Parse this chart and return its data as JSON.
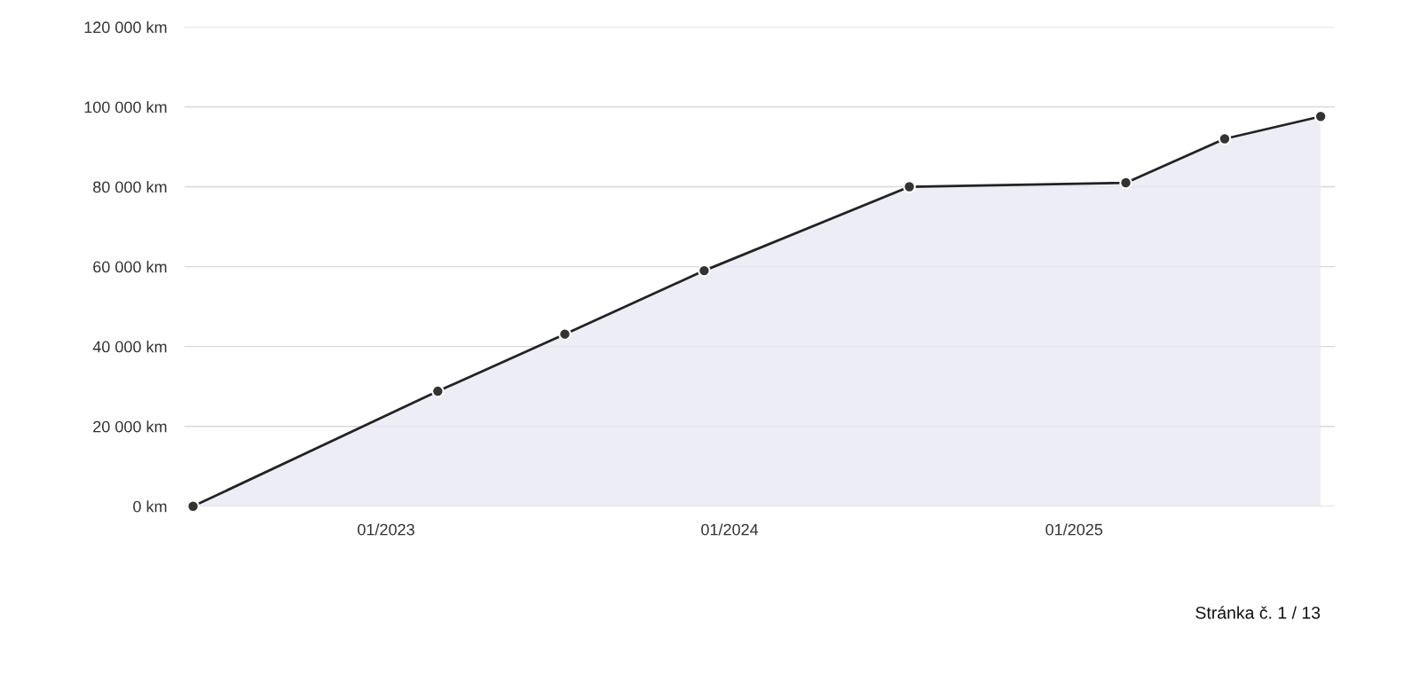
{
  "chart_data": {
    "type": "area",
    "x": [
      "2022-06-10",
      "2023-02-25",
      "2023-07-10",
      "2023-12-05",
      "2024-07-10",
      "2025-02-25",
      "2025-06-10",
      "2025-09-20"
    ],
    "series": [
      {
        "color": "#222222",
        "values": [
          0,
          28800,
          43100,
          59000,
          80000,
          81000,
          92000,
          97600
        ]
      }
    ],
    "xlim": [
      "2022-06-01",
      "2025-10-05"
    ],
    "xticks": [
      {
        "value": "2023-01-01",
        "label": "01/2023"
      },
      {
        "value": "2024-01-01",
        "label": "01/2024"
      },
      {
        "value": "2025-01-01",
        "label": "01/2025"
      }
    ],
    "ylim": [
      0,
      120000
    ],
    "yticks": [
      {
        "value": 0,
        "label": "0 km"
      },
      {
        "value": 20000,
        "label": "20 000 km"
      },
      {
        "value": 40000,
        "label": "40 000 km"
      },
      {
        "value": 60000,
        "label": "60 000 km"
      },
      {
        "value": 80000,
        "label": "80 000 km"
      },
      {
        "value": 100000,
        "label": "100 000 km"
      },
      {
        "value": 120000,
        "label": "120 000 km"
      }
    ],
    "grid": "y",
    "marker": "circle",
    "line_style": "solid",
    "annotations": [
      "Stránka č. 1 / 13"
    ]
  }
}
